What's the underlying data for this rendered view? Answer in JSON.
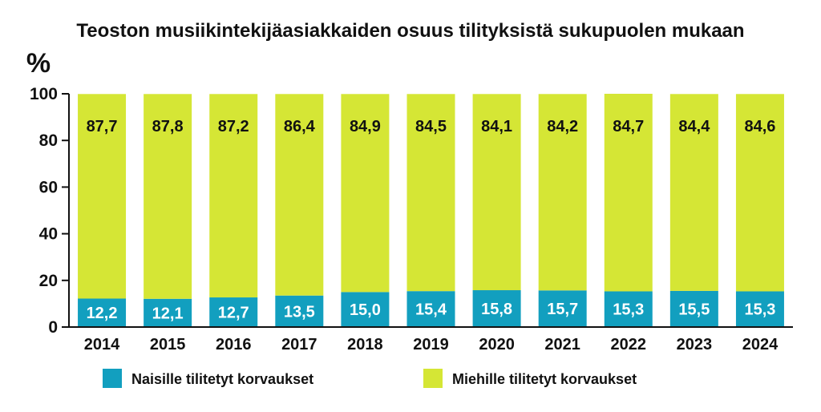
{
  "chart_data": {
    "type": "bar",
    "stacked": true,
    "title": "Teoston musiikintekijäasiakkaiden osuus tilityksistä sukupuolen mukaan",
    "ylabel": "%",
    "xlabel": "",
    "ylim": [
      0,
      100
    ],
    "yticks": [
      "0",
      "20",
      "40",
      "60",
      "80",
      "100"
    ],
    "categories": [
      "2014",
      "2015",
      "2016",
      "2017",
      "2018",
      "2019",
      "2020",
      "2021",
      "2022",
      "2023",
      "2024"
    ],
    "series": [
      {
        "name": "Naisille tilitetyt korvaukset",
        "color": "#129fbf",
        "values": [
          12.2,
          12.1,
          12.7,
          13.5,
          15.0,
          15.4,
          15.8,
          15.7,
          15.3,
          15.5,
          15.3
        ],
        "labels": [
          "12,2",
          "12,1",
          "12,7",
          "13,5",
          "15,0",
          "15,4",
          "15,8",
          "15,7",
          "15,3",
          "15,5",
          "15,3"
        ]
      },
      {
        "name": "Miehille tilitetyt korvaukset",
        "color": "#d5e635",
        "values": [
          87.7,
          87.8,
          87.2,
          86.4,
          84.9,
          84.5,
          84.1,
          84.2,
          84.7,
          84.4,
          84.6
        ],
        "labels": [
          "87,7",
          "87,8",
          "87,2",
          "86,4",
          "84,9",
          "84,5",
          "84,1",
          "84,2",
          "84,7",
          "84,4",
          "84,6"
        ]
      }
    ],
    "grid": false,
    "legend_position": "bottom"
  }
}
